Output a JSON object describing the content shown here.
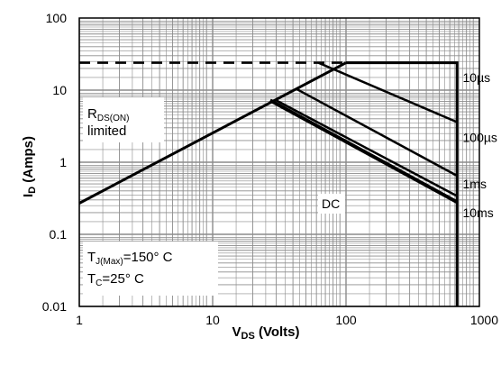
{
  "chart_data": {
    "type": "line",
    "title": "",
    "xlabel": "V",
    "xlabel_sub": "DS",
    "xlabel_unit": " (Volts)",
    "ylabel": "I",
    "ylabel_sub": "D",
    "ylabel_unit": " (Amps)",
    "x_scale": "log",
    "y_scale": "log",
    "xlim": [
      1,
      1000
    ],
    "ylim": [
      0.01,
      100
    ],
    "grid": true,
    "x_ticks": [
      {
        "value": 1,
        "label": "1"
      },
      {
        "value": 10,
        "label": "10"
      },
      {
        "value": 100,
        "label": "100"
      },
      {
        "value": 1000,
        "label": "1000"
      }
    ],
    "y_ticks": [
      {
        "value": 100,
        "label": "100"
      },
      {
        "value": 10,
        "label": "10"
      },
      {
        "value": 1,
        "label": "1"
      },
      {
        "value": 0.1,
        "label": "0.1"
      },
      {
        "value": 0.01,
        "label": "0.01"
      }
    ],
    "current_limit": {
      "y": 24,
      "x_range": [
        1,
        100
      ]
    },
    "rdson_line": {
      "x": [
        1,
        100
      ],
      "y": [
        0.27,
        24
      ]
    },
    "series": [
      {
        "name": "10µs",
        "x": [
          100,
          680,
          680
        ],
        "y": [
          24,
          24,
          0.01
        ],
        "stroke": 3
      },
      {
        "name": "100µs",
        "x": [
          62,
          680
        ],
        "y": [
          24,
          3.6
        ],
        "stroke": 2.5
      },
      {
        "name": "1ms",
        "x": [
          42,
          680
        ],
        "y": [
          10.5,
          0.65
        ],
        "stroke": 2.5
      },
      {
        "name": "10ms",
        "x": [
          30,
          680
        ],
        "y": [
          7.2,
          0.34
        ],
        "stroke": 2.5
      },
      {
        "name": "DC",
        "x": [
          27,
          680
        ],
        "y": [
          7.2,
          0.28
        ],
        "stroke": 4
      }
    ],
    "series_labels": [
      {
        "text": "10µs",
        "x": 750,
        "y": 15
      },
      {
        "text": "100µs",
        "x": 750,
        "y": 2.2
      },
      {
        "text": "1ms",
        "x": 750,
        "y": 0.5
      },
      {
        "text": "10ms",
        "x": 750,
        "y": 0.2
      }
    ],
    "annotations": {
      "rdson": {
        "symbol": "R",
        "subscript": "DS(ON)",
        "line2": "limited"
      },
      "dc_label": "DC",
      "tj": {
        "symbol": "T",
        "subscript": "J(Max)",
        "value": "=150° C"
      },
      "tc": {
        "symbol": "T",
        "subscript": "C",
        "value": "=25° C"
      }
    },
    "colors": {
      "grid": "#8c8c8c",
      "curve": "#000000",
      "frame": "#000000"
    }
  }
}
